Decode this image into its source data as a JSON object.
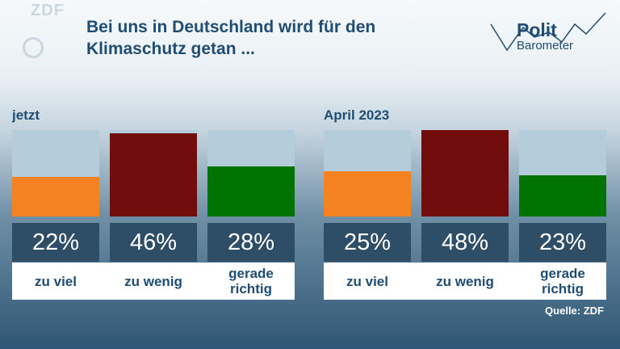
{
  "header": {
    "logo_text": "ZDF",
    "title": "Bei uns in Deutschland wird für den Klimaschutz getan ...",
    "brand_line1": "Polit",
    "brand_line2": "Barometer"
  },
  "source": "Quelle: ZDF",
  "colors": {
    "zu_viel": "#f58220",
    "zu_wenig": "#720d0e",
    "gerade_richtig": "#017300",
    "track": "#b5ccdb",
    "value_box": "#2e4e68",
    "title": "#1f4d73"
  },
  "chart_data": [
    {
      "type": "bar",
      "title": "jetzt",
      "categories": [
        "zu viel",
        "zu wenig",
        "gerade richtig"
      ],
      "values": [
        22,
        46,
        28
      ],
      "value_labels": [
        "22%",
        "46%",
        "28%"
      ],
      "ylim": [
        0,
        48
      ]
    },
    {
      "type": "bar",
      "title": "April 2023",
      "categories": [
        "zu viel",
        "zu wenig",
        "gerade richtig"
      ],
      "values": [
        25,
        48,
        23
      ],
      "value_labels": [
        "25%",
        "48%",
        "23%"
      ],
      "ylim": [
        0,
        48
      ]
    }
  ]
}
